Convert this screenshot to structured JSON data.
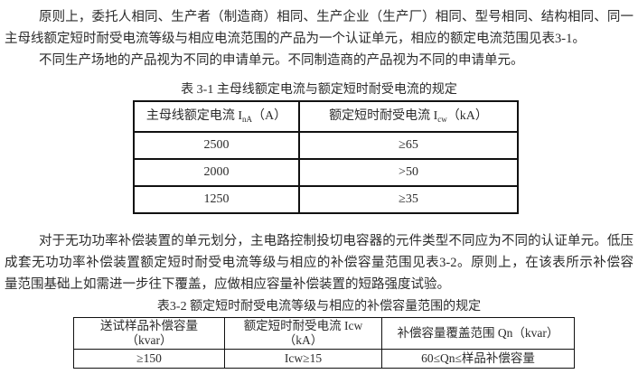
{
  "page": {
    "background_color": "#ffffff",
    "text_color": "#2b2b2b",
    "table_border_color": "#111111"
  },
  "paragraph1": {
    "line1": "原则上，委托人相同、生产者（制造商）相同、生产企业（生产厂）相同、型号相同、结构相同、同一",
    "line2": "主母线额定短时耐受电流等级与相应电流范围的产品为一个认证单元，相应的额定电流范围见表3-1。"
  },
  "paragraph2": {
    "line1": "不同生产场地的产品视为不同的申请单元。不同制造商的产品视为不同的申请单元。"
  },
  "paragraph3": {
    "line1": "对于无功功率补偿装置的单元划分，主电路控制投切电容器的元件类型不同应为不同的认证单元。低压",
    "line2": "成套无功功率补偿装置额定短时耐受电流等级与相应的补偿容量范围见表3-2。原则上，在该表所示补偿容",
    "line3": "量范围基础上如需进一步往下覆盖，应做相应容量补偿装置的短路强度试验。"
  },
  "table1": {
    "caption": "表 3-1 主母线额定电流与额定短时耐受电流的规定",
    "header": {
      "col1_prefix": "主母线额定电流 I",
      "col1_sub": "nA",
      "col1_suffix": "（A）",
      "col2_prefix": "额定短时耐受电流 I",
      "col2_sub": "cw",
      "col2_suffix": "（kA）"
    },
    "rows": [
      {
        "rated_current": "2500",
        "withstand_current": "≥65"
      },
      {
        "rated_current": "2000",
        "withstand_current": ">50"
      },
      {
        "rated_current": "1250",
        "withstand_current": "≥35"
      }
    ]
  },
  "table2": {
    "caption": "表3-2 额定短时耐受电流等级与相应的补偿容量范围的规定",
    "header": {
      "col1_line1": "送试样品补偿容量",
      "col1_line2": "（kvar）",
      "col2_line1": "额定短时耐受电流 Icw",
      "col2_line2": "（kA）",
      "col3": "补偿容量覆盖范围 Qn（kvar）"
    },
    "row": {
      "sample_capacity": "≥150",
      "icw_level": "Icw≥15",
      "coverage_range": "60≤Qn≤样品补偿容量"
    }
  }
}
